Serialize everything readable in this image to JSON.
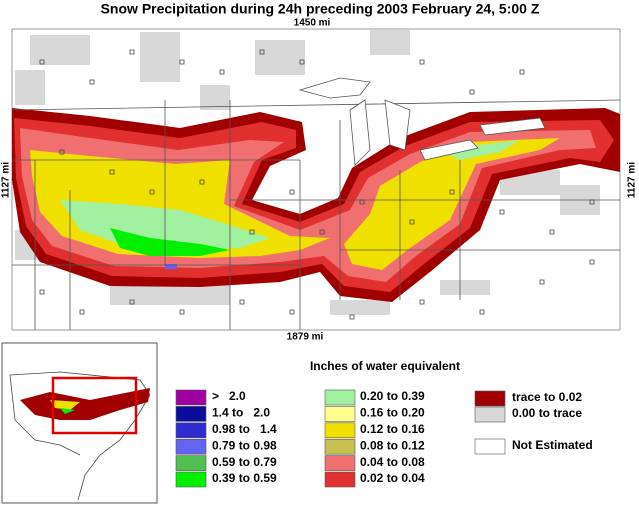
{
  "title": "Snow Precipitation during 24h preceding 2003 February 24, 5:00 Z",
  "scale": {
    "top": "1450 mi",
    "bottom": "1879 mi",
    "left": "1127 mi",
    "right": "1127 mi"
  },
  "legend": {
    "title": "Inches of water equivalent",
    "items": [
      {
        "label": ">   2.0",
        "color": "#a000a0"
      },
      {
        "label": "1.4 to   2.0",
        "color": "#0c0c9c"
      },
      {
        "label": "0.98 to   1.4",
        "color": "#2c2cd0"
      },
      {
        "label": "0.79 to 0.98",
        "color": "#6464f0"
      },
      {
        "label": "0.59 to 0.79",
        "color": "#50c050"
      },
      {
        "label": "0.39 to 0.59",
        "color": "#00f000"
      },
      {
        "label": "0.20 to 0.39",
        "color": "#a0f0a0"
      },
      {
        "label": "0.16 to 0.20",
        "color": "#ffff90"
      },
      {
        "label": "0.12 to 0.16",
        "color": "#f0e000"
      },
      {
        "label": "0.08 to 0.12",
        "color": "#c8c050"
      },
      {
        "label": "0.04 to 0.08",
        "color": "#f07070"
      },
      {
        "label": "0.02 to 0.04",
        "color": "#e03030"
      },
      {
        "label": "trace to 0.02",
        "color": "#a00000"
      },
      {
        "label": "0.00 to trace",
        "color": "#d8d8d8"
      },
      {
        "label": "Not Estimated",
        "color": "#ffffff"
      }
    ]
  }
}
